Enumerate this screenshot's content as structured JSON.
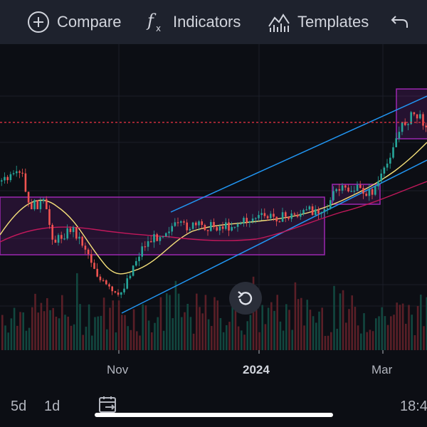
{
  "toolbar": {
    "compare_label": "Compare",
    "indicators_label": "Indicators",
    "templates_label": "Templates",
    "icons": [
      "plus-circle-icon",
      "function-icon",
      "templates-icon",
      "undo-icon"
    ]
  },
  "chart": {
    "x_axis_labels": [
      "Nov",
      "2024",
      "Mar"
    ],
    "colors": {
      "up": "#26a69a",
      "down": "#ef5350",
      "channel": "#2196f3",
      "range_box": "#9c27b0",
      "ma_fast": "#f5e07a",
      "ma_slow": "#c2185b",
      "price_line": "#f23645"
    }
  },
  "bottom_bar": {
    "intervals": [
      "5d",
      "1d"
    ],
    "time": "18:4",
    "icons": [
      "calendar-range-icon"
    ]
  },
  "reset_button": {
    "icon": "reset-icon"
  }
}
